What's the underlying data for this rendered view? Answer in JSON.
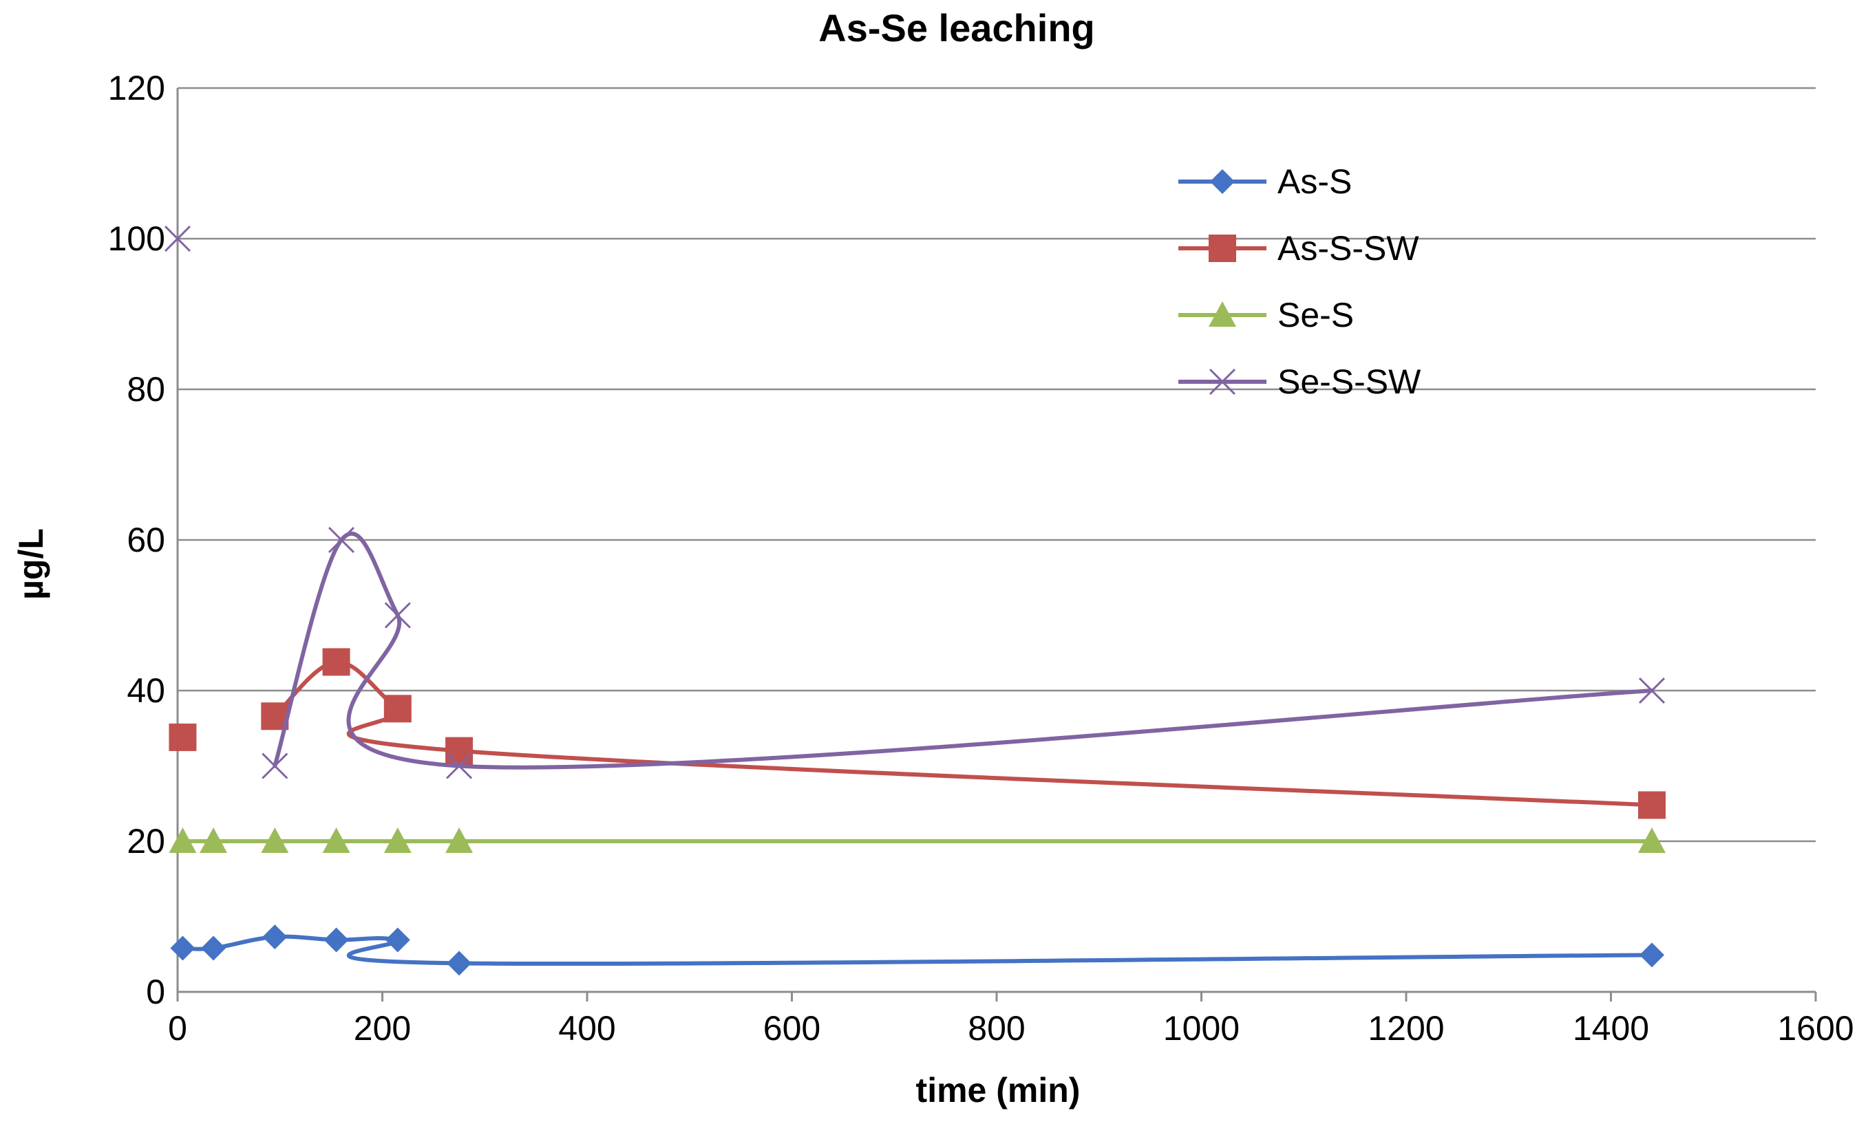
{
  "chart_data": {
    "type": "line",
    "title": "As-Se leaching",
    "xlabel": "time (min)",
    "ylabel": "µg/L",
    "xlim": [
      0,
      1600
    ],
    "ylim": [
      0,
      120
    ],
    "xticks": [
      0,
      200,
      400,
      600,
      800,
      1000,
      1200,
      1400,
      1600
    ],
    "yticks": [
      0,
      20,
      40,
      60,
      80,
      100,
      120
    ],
    "grid": "horizontal",
    "legend_position": "top-right",
    "series": [
      {
        "name": "As-S",
        "color": "#4472c4",
        "marker": "diamond",
        "x": [
          5,
          35,
          95,
          155,
          215,
          275,
          1440
        ],
        "y": [
          5.8,
          5.8,
          7.3,
          6.9,
          6.9,
          3.8,
          4.9
        ]
      },
      {
        "name": "As-S-SW",
        "color": "#c0504d",
        "marker": "square",
        "x": [
          5,
          95,
          155,
          215,
          275,
          1440
        ],
        "y": [
          33.8,
          36.6,
          43.8,
          37.6,
          32.0,
          24.8
        ],
        "line_from_index": 1
      },
      {
        "name": "Se-S",
        "color": "#9bbb59",
        "marker": "triangle",
        "x": [
          5,
          35,
          95,
          155,
          215,
          275,
          1440
        ],
        "y": [
          20,
          20,
          20,
          20,
          20,
          20,
          20
        ]
      },
      {
        "name": "Se-S-SW",
        "color": "#8064a2",
        "marker": "x",
        "x": [
          0,
          95,
          160,
          215,
          275,
          1440
        ],
        "y": [
          100,
          30,
          60,
          50,
          30,
          40
        ],
        "line_from_index": 1
      }
    ]
  }
}
